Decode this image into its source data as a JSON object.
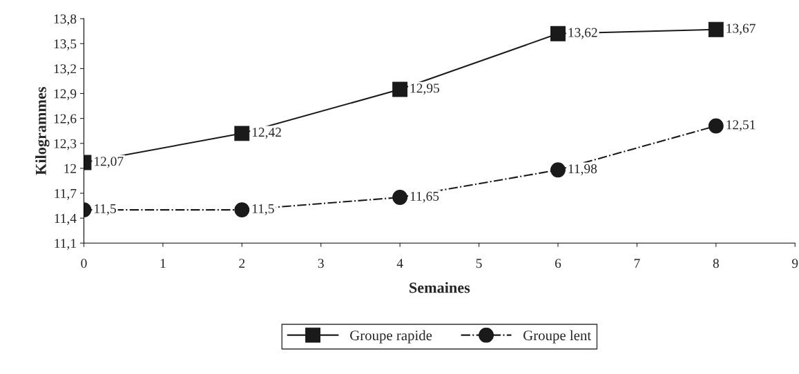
{
  "chart_data": {
    "type": "line",
    "xlabel": "Semaines",
    "ylabel": "Kilogrammes",
    "x": [
      0,
      2,
      4,
      6,
      8
    ],
    "series": [
      {
        "name": "Groupe rapide",
        "color": "#1a1a1a",
        "marker": "square",
        "line_style": "solid",
        "values": [
          12.07,
          12.42,
          12.95,
          13.62,
          13.67
        ],
        "value_labels": [
          "12,07",
          "12,42",
          "12,95",
          "13,62",
          "13,67"
        ]
      },
      {
        "name": "Groupe lent",
        "color": "#1a1a1a",
        "marker": "circle",
        "line_style": "dashdot",
        "values": [
          11.5,
          11.5,
          11.65,
          11.98,
          12.51
        ],
        "value_labels": [
          "11,5",
          "11,5",
          "11,65",
          "11,98",
          "12,51"
        ]
      }
    ],
    "xlim": [
      0,
      9
    ],
    "xticks": [
      0,
      1,
      2,
      3,
      4,
      5,
      6,
      7,
      8,
      9
    ],
    "ylim": [
      11.1,
      13.8
    ],
    "yticks": [
      {
        "value": 11.1,
        "label": "11,1"
      },
      {
        "value": 11.4,
        "label": "11,4"
      },
      {
        "value": 11.7,
        "label": "11,7"
      },
      12,
      {
        "value": 12.3,
        "label": "12,3"
      },
      {
        "value": 12.6,
        "label": "12,6"
      },
      {
        "value": 12.9,
        "label": "12,9"
      },
      {
        "value": 13.2,
        "label": "13,2"
      },
      {
        "value": 13.5,
        "label": "13,5"
      },
      {
        "value": 13.8,
        "label": "13,8"
      }
    ],
    "grid": false,
    "legend": "bottom"
  }
}
